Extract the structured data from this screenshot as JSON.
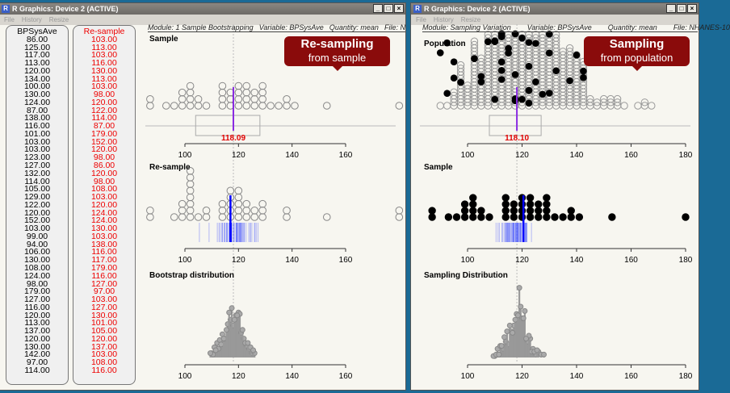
{
  "left_window": {
    "title": "R Graphics: Device 2 (ACTIVE)",
    "menu": [
      "File",
      "History",
      "Resize"
    ],
    "header": {
      "module": "Module: 1 Sample Bootstrapping",
      "variable": "Variable: BPSysAve",
      "quantity": "Quantity: mean",
      "file": "File: N"
    },
    "sample_col": {
      "title": "BPSysAve",
      "values": [
        "86.00",
        "125.00",
        "117.00",
        "113.00",
        "120.00",
        "134.00",
        "100.00",
        "130.00",
        "124.00",
        "87.00",
        "138.00",
        "116.00",
        "101.00",
        "103.00",
        "103.00",
        "123.00",
        "127.00",
        "132.00",
        "114.00",
        "105.00",
        "129.00",
        "122.00",
        "120.00",
        "152.00",
        "103.00",
        "99.00",
        "94.00",
        "106.00",
        "130.00",
        "108.00",
        "124.00",
        "98.00",
        "179.00",
        "127.00",
        "116.00",
        "120.00",
        "113.00",
        "137.00",
        "120.00",
        "130.00",
        "142.00",
        "97.00",
        "114.00"
      ]
    },
    "resample_col": {
      "title": "Re-sample",
      "values": [
        "103.00",
        "113.00",
        "103.00",
        "116.00",
        "130.00",
        "113.00",
        "103.00",
        "98.00",
        "120.00",
        "122.00",
        "114.00",
        "87.00",
        "179.00",
        "152.00",
        "120.00",
        "98.00",
        "86.00",
        "120.00",
        "98.00",
        "108.00",
        "103.00",
        "120.00",
        "124.00",
        "124.00",
        "130.00",
        "103.00",
        "138.00",
        "116.00",
        "117.00",
        "179.00",
        "116.00",
        "127.00",
        "97.00",
        "103.00",
        "127.00",
        "130.00",
        "101.00",
        "105.00",
        "120.00",
        "137.00",
        "103.00",
        "108.00",
        "116.00"
      ]
    },
    "panels": {
      "sample": "Sample",
      "resample": "Re-sample",
      "bootstrap": "Bootstrap distribution"
    },
    "sample_mean": "118.09",
    "callout": {
      "line1": "Re-sampling",
      "line2": "from sample"
    },
    "ticks": [
      "100",
      "120",
      "140",
      "160"
    ]
  },
  "right_window": {
    "title": "R Graphics: Device 2 (ACTIVE)",
    "menu": [
      "File",
      "History",
      "Resize"
    ],
    "header": {
      "module": "Module: Sampling Variation",
      "variable": "Variable: BPSysAve",
      "quantity": "Quantity: mean",
      "file": "File: NHANES-10"
    },
    "panels": {
      "population": "Population",
      "sample": "Sample",
      "sampling": "Sampling Distribution"
    },
    "population_mean": "118.10",
    "callout": {
      "line1": "Sampling",
      "line2": "from population"
    },
    "ticks": [
      "100",
      "120",
      "140",
      "160",
      "180"
    ]
  },
  "colors": {
    "sample_text": "#000000",
    "resample_text": "#ff0000",
    "mean_line": "#8a2be2",
    "mean_label": "#e00000",
    "resample_means": "#0000ff",
    "callout": "#8a0b0b",
    "dots": "#999999"
  }
}
